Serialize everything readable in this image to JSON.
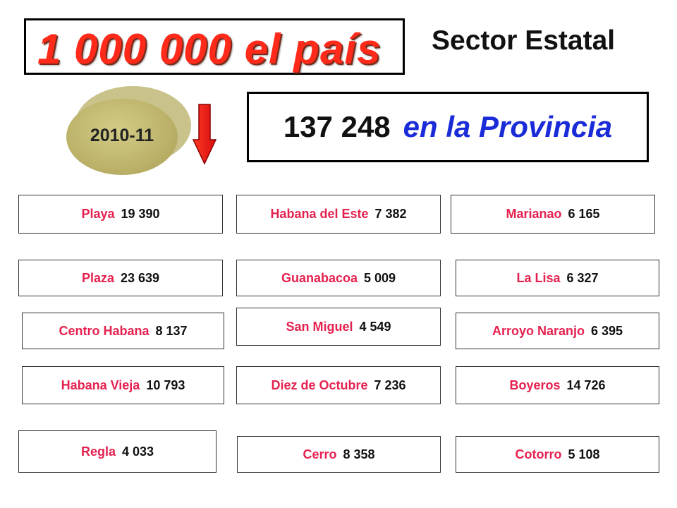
{
  "title": "1 000 000  el país",
  "subtitle": "Sector Estatal",
  "year": "2010-11",
  "province": {
    "value": "137 248",
    "label": "en la Provincia"
  },
  "colors": {
    "title": "#ff2a1a",
    "province_label": "#1a2bd8",
    "municipio_name": "#e5214f",
    "disc": "#bcb26a",
    "arrow": "#ff1a1a"
  },
  "icons": {
    "arrow": "down-arrow-icon",
    "disc": "disc-shape"
  },
  "municipios": [
    {
      "name": "Playa",
      "value": "19 390"
    },
    {
      "name": "Habana del Este",
      "value": "7 382"
    },
    {
      "name": "Marianao",
      "value": "6 165"
    },
    {
      "name": "Plaza",
      "value": "23 639"
    },
    {
      "name": "Guanabacoa",
      "value": "5 009"
    },
    {
      "name": "La Lisa",
      "value": "6 327"
    },
    {
      "name": "Centro Habana",
      "value": "8 137"
    },
    {
      "name": "San Miguel",
      "value": "4 549"
    },
    {
      "name": "Arroyo Naranjo",
      "value": "6 395"
    },
    {
      "name": "Habana  Vieja",
      "value": "10 793"
    },
    {
      "name": "Diez de Octubre",
      "value": "7 236"
    },
    {
      "name": "Boyeros",
      "value": "14 726"
    },
    {
      "name": "Regla",
      "value": "4 033"
    },
    {
      "name": "Cerro",
      "value": "8 358"
    },
    {
      "name": "Cotorro",
      "value": "5 108"
    }
  ]
}
